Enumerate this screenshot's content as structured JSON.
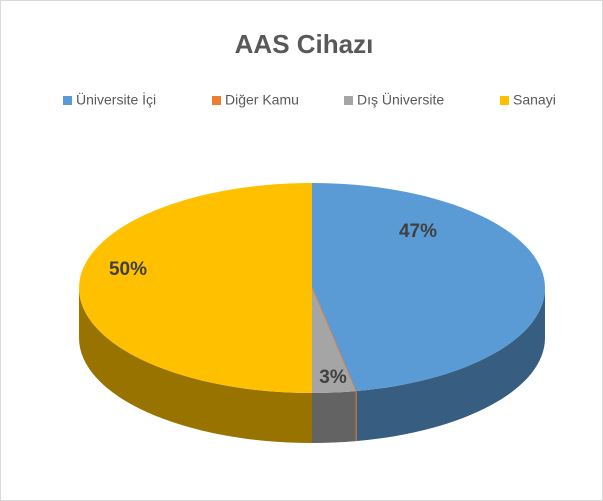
{
  "chart_data": {
    "type": "pie",
    "title": "AAS Cihazı",
    "categories": [
      "Üniversite İçi",
      "Diğer Kamu",
      "Dış Üniversite",
      "Sanayi"
    ],
    "values": [
      47,
      0,
      3,
      50
    ],
    "value_labels": [
      "47%",
      null,
      "3%",
      "50%"
    ],
    "colors": [
      "#5b9bd5",
      "#ed7d31",
      "#a5a5a5",
      "#ffc000"
    ],
    "legend": "top"
  }
}
